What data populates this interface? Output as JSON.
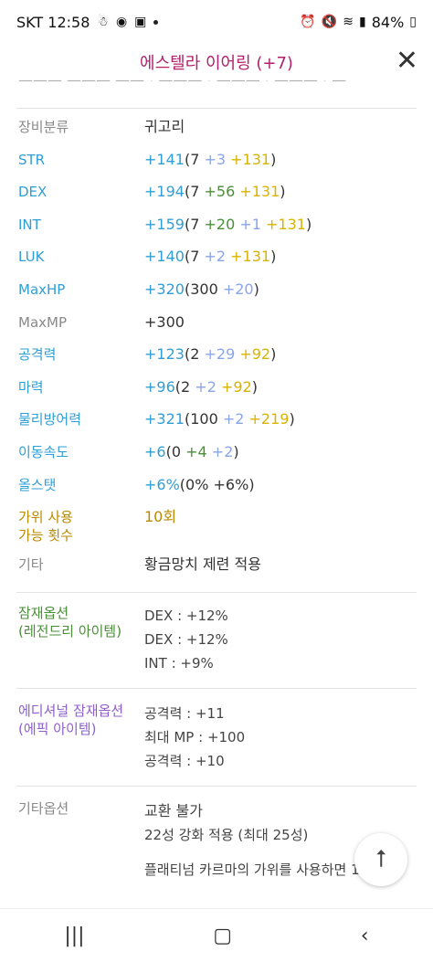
{
  "status_bar": {
    "carrier_time": "SKT 12:58",
    "battery": "84%"
  },
  "header": {
    "title": "에스텔라 이어링 (+7)"
  },
  "stats": {
    "category_label": "장비분류",
    "category_value": "귀고리",
    "str": {
      "label": "STR",
      "total": "+141",
      "open": "(",
      "base": "7",
      "b1": " +3",
      "b2": " +131",
      "close": ")"
    },
    "dex": {
      "label": "DEX",
      "total": "+194",
      "open": "(",
      "base": "7",
      "b1": " +56",
      "b2": " +131",
      "close": ")"
    },
    "int": {
      "label": "INT",
      "total": "+159",
      "open": "(",
      "base": "7",
      "b1": " +20",
      "b2": " +1",
      "b3": " +131",
      "close": ")"
    },
    "luk": {
      "label": "LUK",
      "total": "+140",
      "open": "(",
      "base": "7",
      "b1": " +2",
      "b2": " +131",
      "close": ")"
    },
    "maxhp": {
      "label": "MaxHP",
      "total": "+320",
      "open": "(",
      "base": "300",
      "b1": " +20",
      "close": ")"
    },
    "maxmp": {
      "label": "MaxMP",
      "total": "+300"
    },
    "attack": {
      "label": "공격력",
      "total": "+123",
      "open": "(",
      "base": "2",
      "b1": " +29",
      "b2": " +92",
      "close": ")"
    },
    "magic": {
      "label": "마력",
      "total": "+96",
      "open": "(",
      "base": "2",
      "b1": " +2",
      "b2": " +92",
      "close": ")"
    },
    "defense": {
      "label": "물리방어력",
      "total": "+321",
      "open": "(",
      "base": "100",
      "b1": " +2",
      "b2": " +219",
      "close": ")"
    },
    "speed": {
      "label": "이동속도",
      "total": "+6",
      "open": "(",
      "base": "0",
      "b1": " +4",
      "b2": " +2",
      "close": ")"
    },
    "allstat": {
      "label": "올스탯",
      "total": "+6%",
      "open": "(",
      "base": "0%",
      "b1": " +6%",
      "close": ")"
    },
    "scissors": {
      "label_line1": "가위 사용",
      "label_line2": "가능 횟수",
      "value": "10회"
    },
    "etc": {
      "label": "기타",
      "value": "황금망치 제련 적용"
    }
  },
  "potential": {
    "label_line1": "잠재옵션",
    "label_line2": "(레전드리 아이템)",
    "lines": [
      "DEX : +12%",
      "DEX : +12%",
      "INT : +9%"
    ]
  },
  "additional": {
    "label_line1": "에디셔널 잠재옵션",
    "label_line2": "(에픽 아이템)",
    "lines": [
      "공격력 : +11",
      "최대 MP : +100",
      "공격력 : +10"
    ]
  },
  "other": {
    "label": "기타옵션",
    "trade": "교환 불가",
    "star": "22성 강화 적용 (최대 25성)",
    "karma": "플래티넘 카르마의 가위를 사용하면 1회"
  },
  "icons": {
    "close": "close-icon",
    "scroll_top": "arrow-up-icon",
    "nav_recent": "recent-apps-icon",
    "nav_home": "home-icon",
    "nav_back": "back-icon"
  }
}
